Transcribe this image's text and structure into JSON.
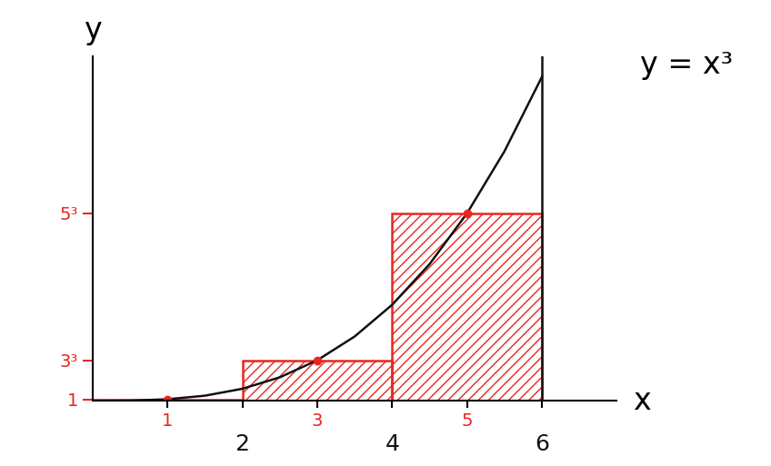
{
  "chart_data": {
    "type": "bar",
    "annotation": "y = x³",
    "x_label": "x",
    "y_label": "y",
    "series": [
      {
        "type": "bar",
        "x": [
          1,
          3,
          5
        ],
        "values": [
          1,
          27,
          125
        ],
        "width": 2,
        "color": "#e8261f",
        "marker": "o"
      },
      {
        "type": "line",
        "x": [
          0,
          0.5,
          1,
          1.5,
          2,
          2.5,
          3,
          3.5,
          4,
          4.5,
          5,
          5.5,
          6
        ],
        "values": [
          0,
          0.125,
          1,
          3.375,
          8,
          15.625,
          27,
          42.875,
          64,
          91.125,
          125,
          166.375,
          216
        ],
        "color": "#111111"
      }
    ],
    "xlim": [
      0,
      7
    ],
    "ylim": [
      0,
      230
    ],
    "xticks": [
      1,
      2,
      3,
      4,
      5,
      6
    ],
    "yticks": [
      1,
      {
        "value": 27,
        "label": "3³"
      },
      {
        "value": 125,
        "label": "5³"
      }
    ]
  }
}
